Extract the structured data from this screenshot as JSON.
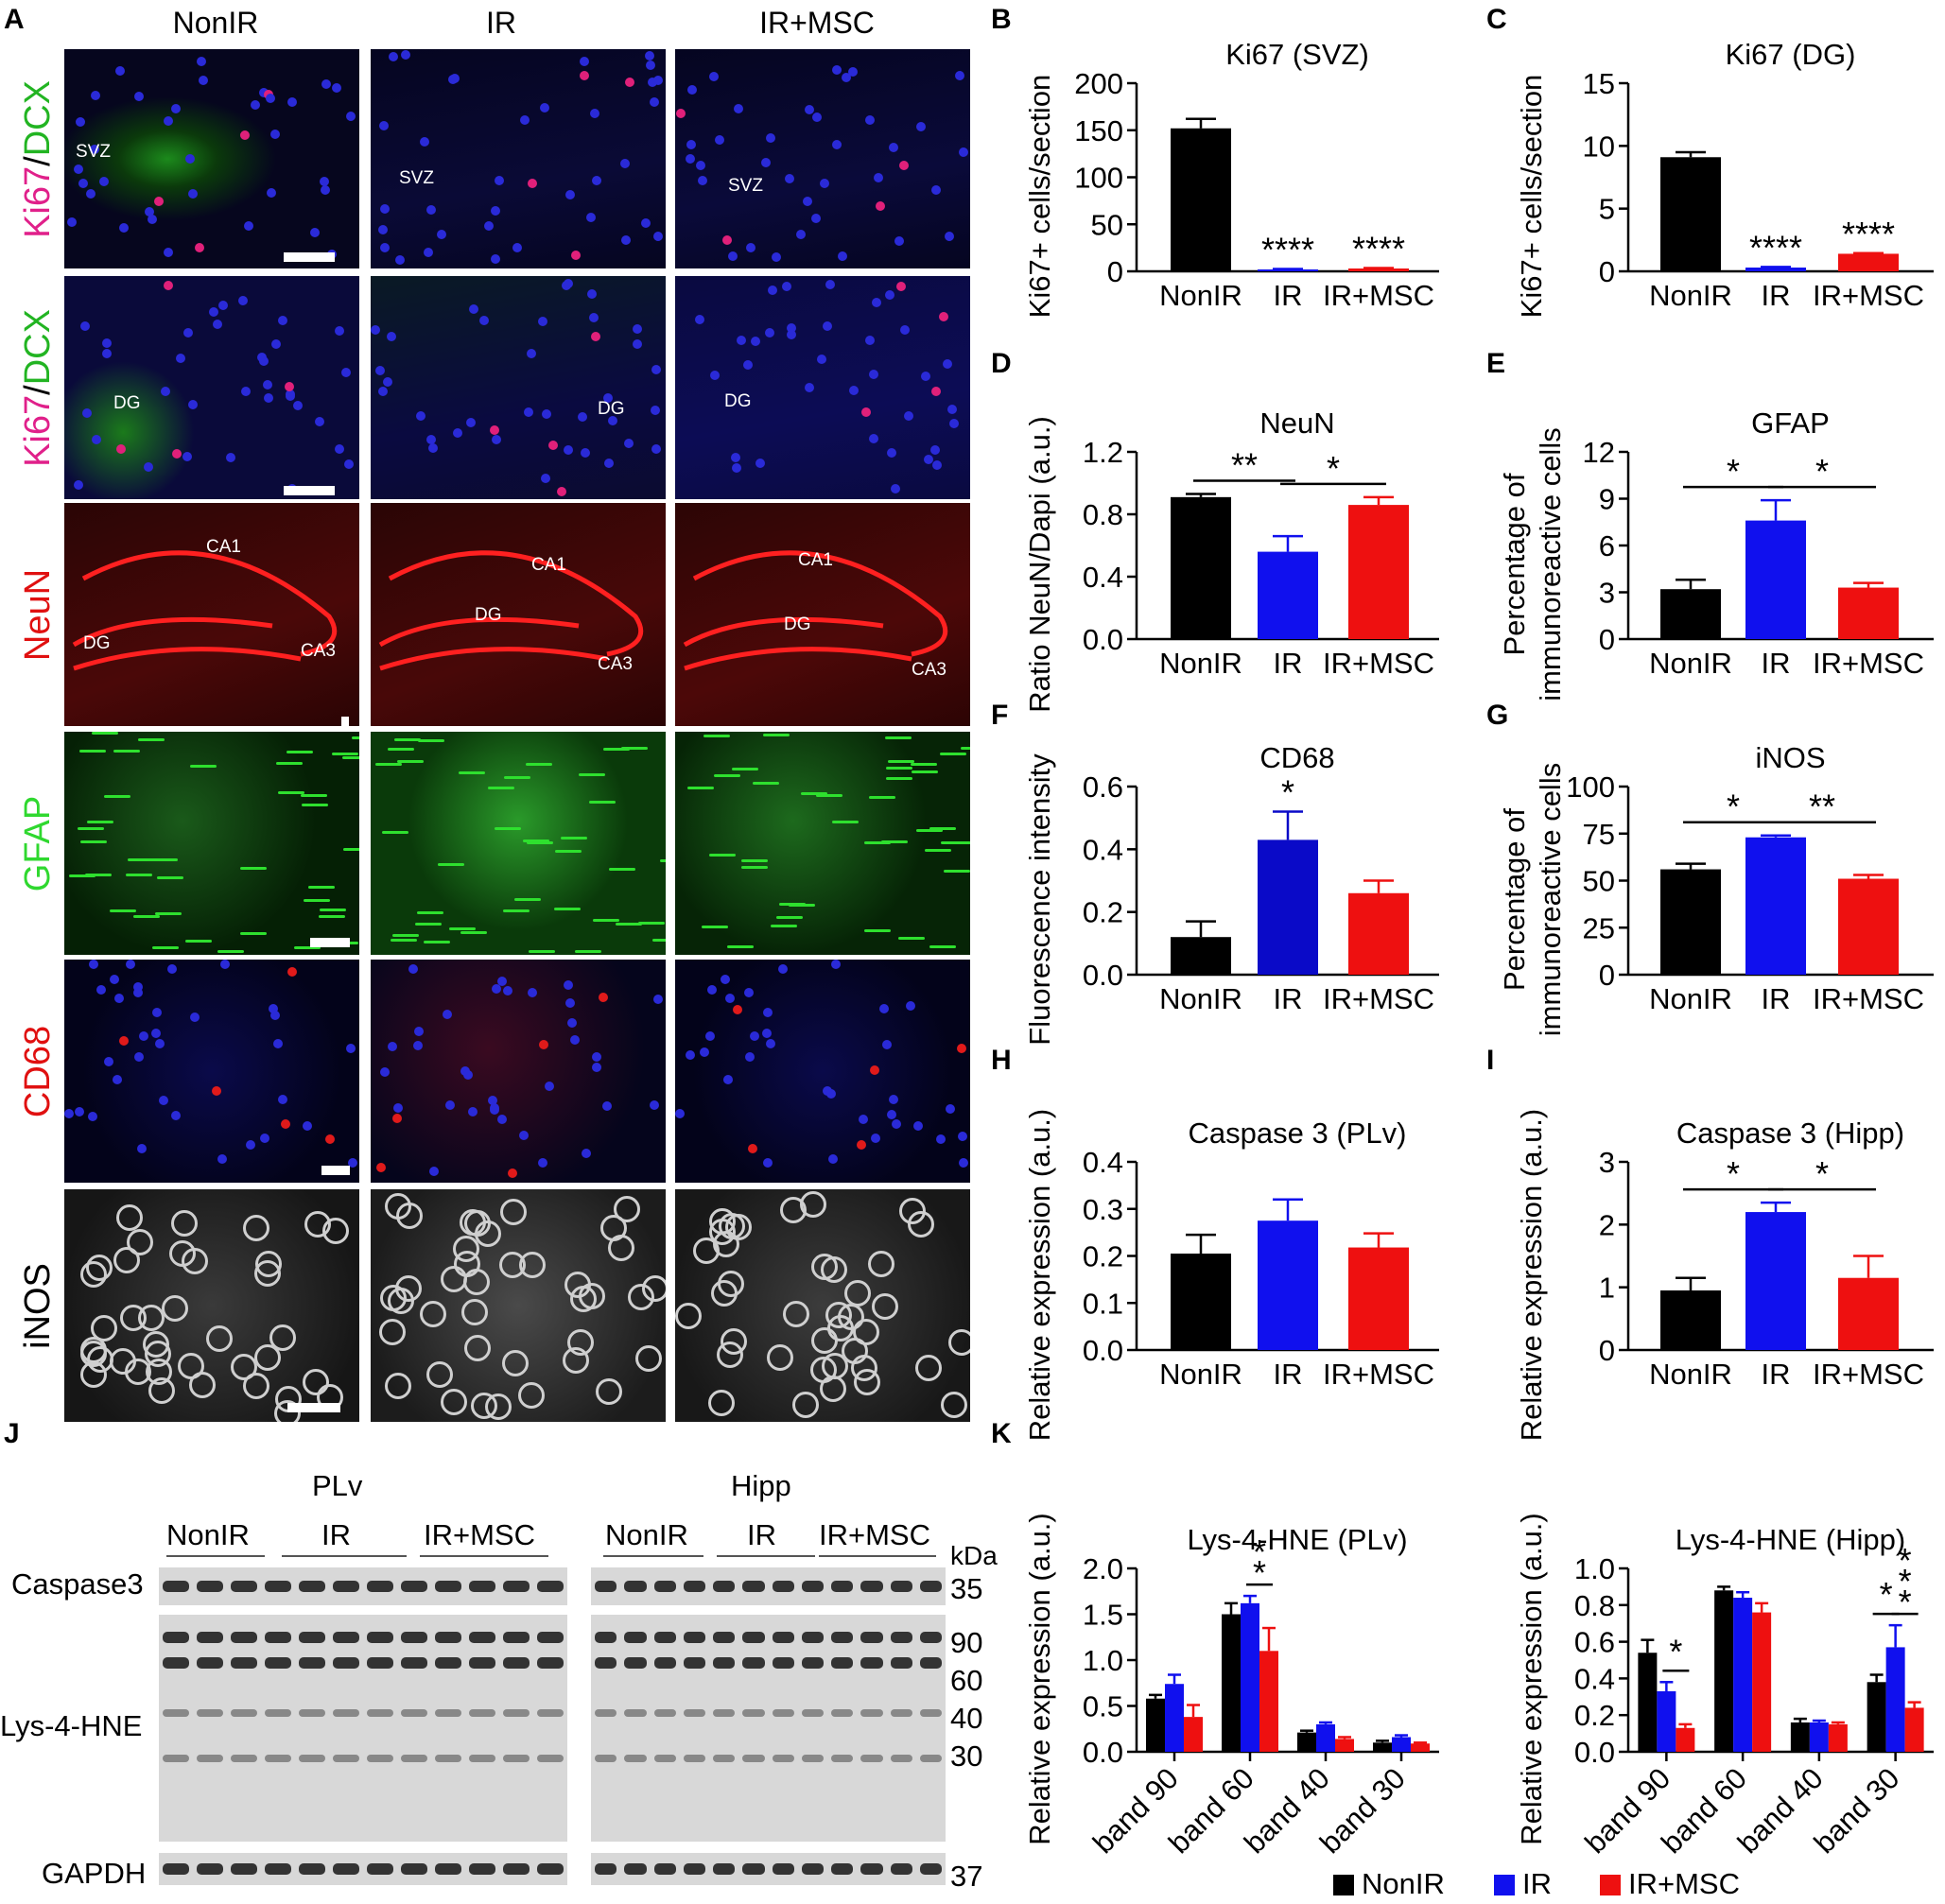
{
  "panel_letters": [
    "A",
    "B",
    "C",
    "D",
    "E",
    "F",
    "G",
    "H",
    "I",
    "J",
    "K"
  ],
  "panelA": {
    "columns": [
      "NonIR",
      "IR",
      "IR+MSC"
    ],
    "rows": [
      {
        "label": [
          "Ki67",
          "/",
          "DCX"
        ],
        "colors": [
          "#e0208a",
          "#000",
          "#22b422"
        ],
        "regions": [
          [
            "SVZ"
          ],
          [
            "SVZ"
          ],
          [
            "SVZ"
          ]
        ]
      },
      {
        "label": [
          "Ki67",
          "/",
          "DCX"
        ],
        "colors": [
          "#e0208a",
          "#000",
          "#22b422"
        ],
        "regions": [
          [
            "DG"
          ],
          [
            "DG"
          ],
          [
            "DG"
          ]
        ]
      },
      {
        "label": [
          "NeuN"
        ],
        "colors": [
          "#e01010"
        ],
        "regions": [
          [
            "CA1",
            "DG",
            "CA3"
          ],
          [
            "CA1",
            "DG",
            "CA3"
          ],
          [
            "CA1",
            "DG",
            "CA3"
          ]
        ]
      },
      {
        "label": [
          "GFAP"
        ],
        "colors": [
          "#2fd82f"
        ],
        "regions": [
          [],
          [],
          []
        ]
      },
      {
        "label": [
          "CD68"
        ],
        "colors": [
          "#e01010"
        ],
        "regions": [
          [],
          [],
          []
        ]
      },
      {
        "label": [
          "iNOS"
        ],
        "colors": [
          "#000000"
        ],
        "regions": [
          [],
          [],
          []
        ]
      }
    ]
  },
  "chart_data": [
    {
      "id": "B",
      "type": "bar",
      "title": "Ki67 (SVZ)",
      "ylabel": "Ki67+ cells/section",
      "categories": [
        "NonIR",
        "IR",
        "IR+MSC"
      ],
      "values": [
        152,
        2,
        3
      ],
      "errors": [
        10,
        0.5,
        0.5
      ],
      "ylim": [
        0,
        200
      ],
      "yticks": [
        "0",
        "50",
        "100",
        "150",
        "200"
      ],
      "colors": [
        "#000000",
        "#1010ee",
        "#ee1010"
      ],
      "annotations": [
        {
          "text": "****",
          "over": 1
        },
        {
          "text": "****",
          "over": 2
        }
      ]
    },
    {
      "id": "C",
      "type": "bar",
      "title": "Ki67 (DG)",
      "ylabel": "Ki67+ cells/section",
      "categories": [
        "NonIR",
        "IR",
        "IR+MSC"
      ],
      "values": [
        9.1,
        0.3,
        1.4
      ],
      "errors": [
        0.4,
        0.05,
        0.05
      ],
      "ylim": [
        0,
        15
      ],
      "yticks": [
        "0",
        "5",
        "10",
        "15"
      ],
      "colors": [
        "#000000",
        "#1010ee",
        "#ee1010"
      ],
      "annotations": [
        {
          "text": "****",
          "over": 1
        },
        {
          "text": "****",
          "over": 2
        }
      ]
    },
    {
      "id": "D",
      "type": "bar",
      "title": "NeuN",
      "ylabel": "Ratio NeuN/Dapi (a.u.)",
      "categories": [
        "NonIR",
        "IR",
        "IR+MSC"
      ],
      "values": [
        0.91,
        0.56,
        0.86
      ],
      "errors": [
        0.02,
        0.1,
        0.05
      ],
      "ylim": [
        0,
        1.2
      ],
      "yticks": [
        "0.0",
        "0.4",
        "0.8",
        "1.2"
      ],
      "colors": [
        "#000000",
        "#1010ee",
        "#ee1010"
      ],
      "brackets": [
        {
          "from": 0,
          "to": 1,
          "text": "**"
        },
        {
          "from": 1,
          "to": 2,
          "text": "*"
        }
      ]
    },
    {
      "id": "E",
      "type": "bar",
      "title": "GFAP",
      "ylabel": [
        "Percentage of",
        "immunoreactive cells"
      ],
      "categories": [
        "NonIR",
        "IR",
        "IR+MSC"
      ],
      "values": [
        3.2,
        7.6,
        3.3
      ],
      "errors": [
        0.6,
        1.3,
        0.3
      ],
      "ylim": [
        0,
        12
      ],
      "yticks": [
        "0",
        "3",
        "6",
        "9",
        "12"
      ],
      "colors": [
        "#000000",
        "#1010ee",
        "#ee1010"
      ],
      "brackets": [
        {
          "from": 0,
          "to": 1,
          "text": "*"
        },
        {
          "from": 1,
          "to": 2,
          "text": "*"
        }
      ]
    },
    {
      "id": "F",
      "type": "bar",
      "title": "CD68",
      "ylabel": "Fluorescence intensity",
      "categories": [
        "NonIR",
        "IR",
        "IR+MSC"
      ],
      "values": [
        0.12,
        0.43,
        0.26
      ],
      "errors": [
        0.05,
        0.09,
        0.04
      ],
      "ylim": [
        0,
        0.6
      ],
      "yticks": [
        "0.0",
        "0.2",
        "0.4",
        "0.6"
      ],
      "colors": [
        "#000000",
        "#0a0ac8",
        "#ee1010"
      ],
      "annotations": [
        {
          "text": "*",
          "over": 1
        }
      ]
    },
    {
      "id": "G",
      "type": "bar",
      "title": "iNOS",
      "ylabel": [
        "Percentage of",
        "immunoreactive cells"
      ],
      "categories": [
        "NonIR",
        "IR",
        "IR+MSC"
      ],
      "values": [
        56,
        73,
        51
      ],
      "errors": [
        3,
        1,
        2
      ],
      "ylim": [
        0,
        100
      ],
      "yticks": [
        "0",
        "25",
        "50",
        "75",
        "100"
      ],
      "colors": [
        "#000000",
        "#1010ee",
        "#ee1010"
      ],
      "brackets": [
        {
          "from": 0,
          "to": 1,
          "text": "*"
        },
        {
          "from": 1,
          "to": 2,
          "text": "**"
        }
      ]
    },
    {
      "id": "H",
      "type": "bar",
      "title": "Caspase 3 (PLv)",
      "ylabel": "Relative expression (a.u.)",
      "categories": [
        "NonIR",
        "IR",
        "IR+MSC"
      ],
      "values": [
        0.205,
        0.275,
        0.218
      ],
      "errors": [
        0.04,
        0.045,
        0.03
      ],
      "ylim": [
        0,
        0.4
      ],
      "yticks": [
        "0.0",
        "0.1",
        "0.2",
        "0.3",
        "0.4"
      ],
      "colors": [
        "#000000",
        "#1010ee",
        "#ee1010"
      ]
    },
    {
      "id": "I",
      "type": "bar",
      "title": "Caspase 3 (Hipp)",
      "ylabel": "Relative expression (a.u.)",
      "categories": [
        "NonIR",
        "IR",
        "IR+MSC"
      ],
      "values": [
        0.95,
        2.2,
        1.15
      ],
      "errors": [
        0.2,
        0.15,
        0.35
      ],
      "ylim": [
        0,
        3
      ],
      "yticks": [
        "0",
        "1",
        "2",
        "3"
      ],
      "colors": [
        "#000000",
        "#1010ee",
        "#ee1010"
      ],
      "brackets": [
        {
          "from": 0,
          "to": 1,
          "text": "*"
        },
        {
          "from": 1,
          "to": 2,
          "text": "*"
        }
      ]
    },
    {
      "id": "K1",
      "type": "bar",
      "title": "Lys-4-HNE (PLv)",
      "ylabel": "Relative expression (a.u.)",
      "categories": [
        "band 90",
        "band 60",
        "band 40",
        "band 30"
      ],
      "series": [
        {
          "name": "NonIR",
          "values": [
            0.58,
            1.5,
            0.21,
            0.1
          ],
          "errors": [
            0.04,
            0.12,
            0.02,
            0.02
          ]
        },
        {
          "name": "IR",
          "values": [
            0.74,
            1.62,
            0.3,
            0.16
          ],
          "errors": [
            0.1,
            0.08,
            0.02,
            0.02
          ]
        },
        {
          "name": "IR+MSC",
          "values": [
            0.38,
            1.1,
            0.14,
            0.09
          ],
          "errors": [
            0.13,
            0.25,
            0.02,
            0.01
          ]
        }
      ],
      "ylim": [
        0,
        2
      ],
      "yticks": [
        "0.0",
        "0.5",
        "1.0",
        "1.5",
        "2.0"
      ],
      "colors": [
        "#000000",
        "#1010ee",
        "#ee1010"
      ],
      "brackets": [
        {
          "cat": 1,
          "from": 1,
          "to": 2,
          "text": "**"
        }
      ]
    },
    {
      "id": "K2",
      "type": "bar",
      "title": "Lys-4-HNE (Hipp)",
      "ylabel": "Relative expression (a.u.)",
      "categories": [
        "band 90",
        "band 60",
        "band 40",
        "band 30"
      ],
      "series": [
        {
          "name": "NonIR",
          "values": [
            0.54,
            0.88,
            0.16,
            0.38
          ],
          "errors": [
            0.07,
            0.02,
            0.02,
            0.04
          ]
        },
        {
          "name": "IR",
          "values": [
            0.33,
            0.84,
            0.16,
            0.57
          ],
          "errors": [
            0.05,
            0.03,
            0.01,
            0.12
          ]
        },
        {
          "name": "IR+MSC",
          "values": [
            0.13,
            0.76,
            0.15,
            0.24
          ],
          "errors": [
            0.02,
            0.05,
            0.01,
            0.03
          ]
        }
      ],
      "ylim": [
        0,
        1
      ],
      "yticks": [
        "0.0",
        "0.2",
        "0.4",
        "0.6",
        "0.8",
        "1.0"
      ],
      "colors": [
        "#000000",
        "#1010ee",
        "#ee1010"
      ],
      "brackets": [
        {
          "cat": 0,
          "from": 1,
          "to": 2,
          "text": "*"
        },
        {
          "cat": 3,
          "from": 0,
          "to": 1,
          "text": "*"
        },
        {
          "cat": 3,
          "from": 1,
          "to": 2,
          "text": "***"
        }
      ]
    }
  ],
  "legend": [
    {
      "name": "NonIR",
      "color": "#000000"
    },
    {
      "name": "IR",
      "color": "#1010ee"
    },
    {
      "name": "IR+MSC",
      "color": "#ee1010"
    }
  ],
  "panelJ": {
    "groups": [
      {
        "title": "PLv",
        "subgroups": [
          "NonIR",
          "IR",
          "IR+MSC"
        ]
      },
      {
        "title": "Hipp",
        "subgroups": [
          "NonIR",
          "IR",
          "IR+MSC"
        ]
      }
    ],
    "row_labels": [
      "Caspase3",
      "Lys-4-HNE",
      "GAPDH"
    ],
    "kda_header": "kDa",
    "kda_marks": [
      "35",
      "90",
      "60",
      "40",
      "30",
      "37"
    ]
  }
}
